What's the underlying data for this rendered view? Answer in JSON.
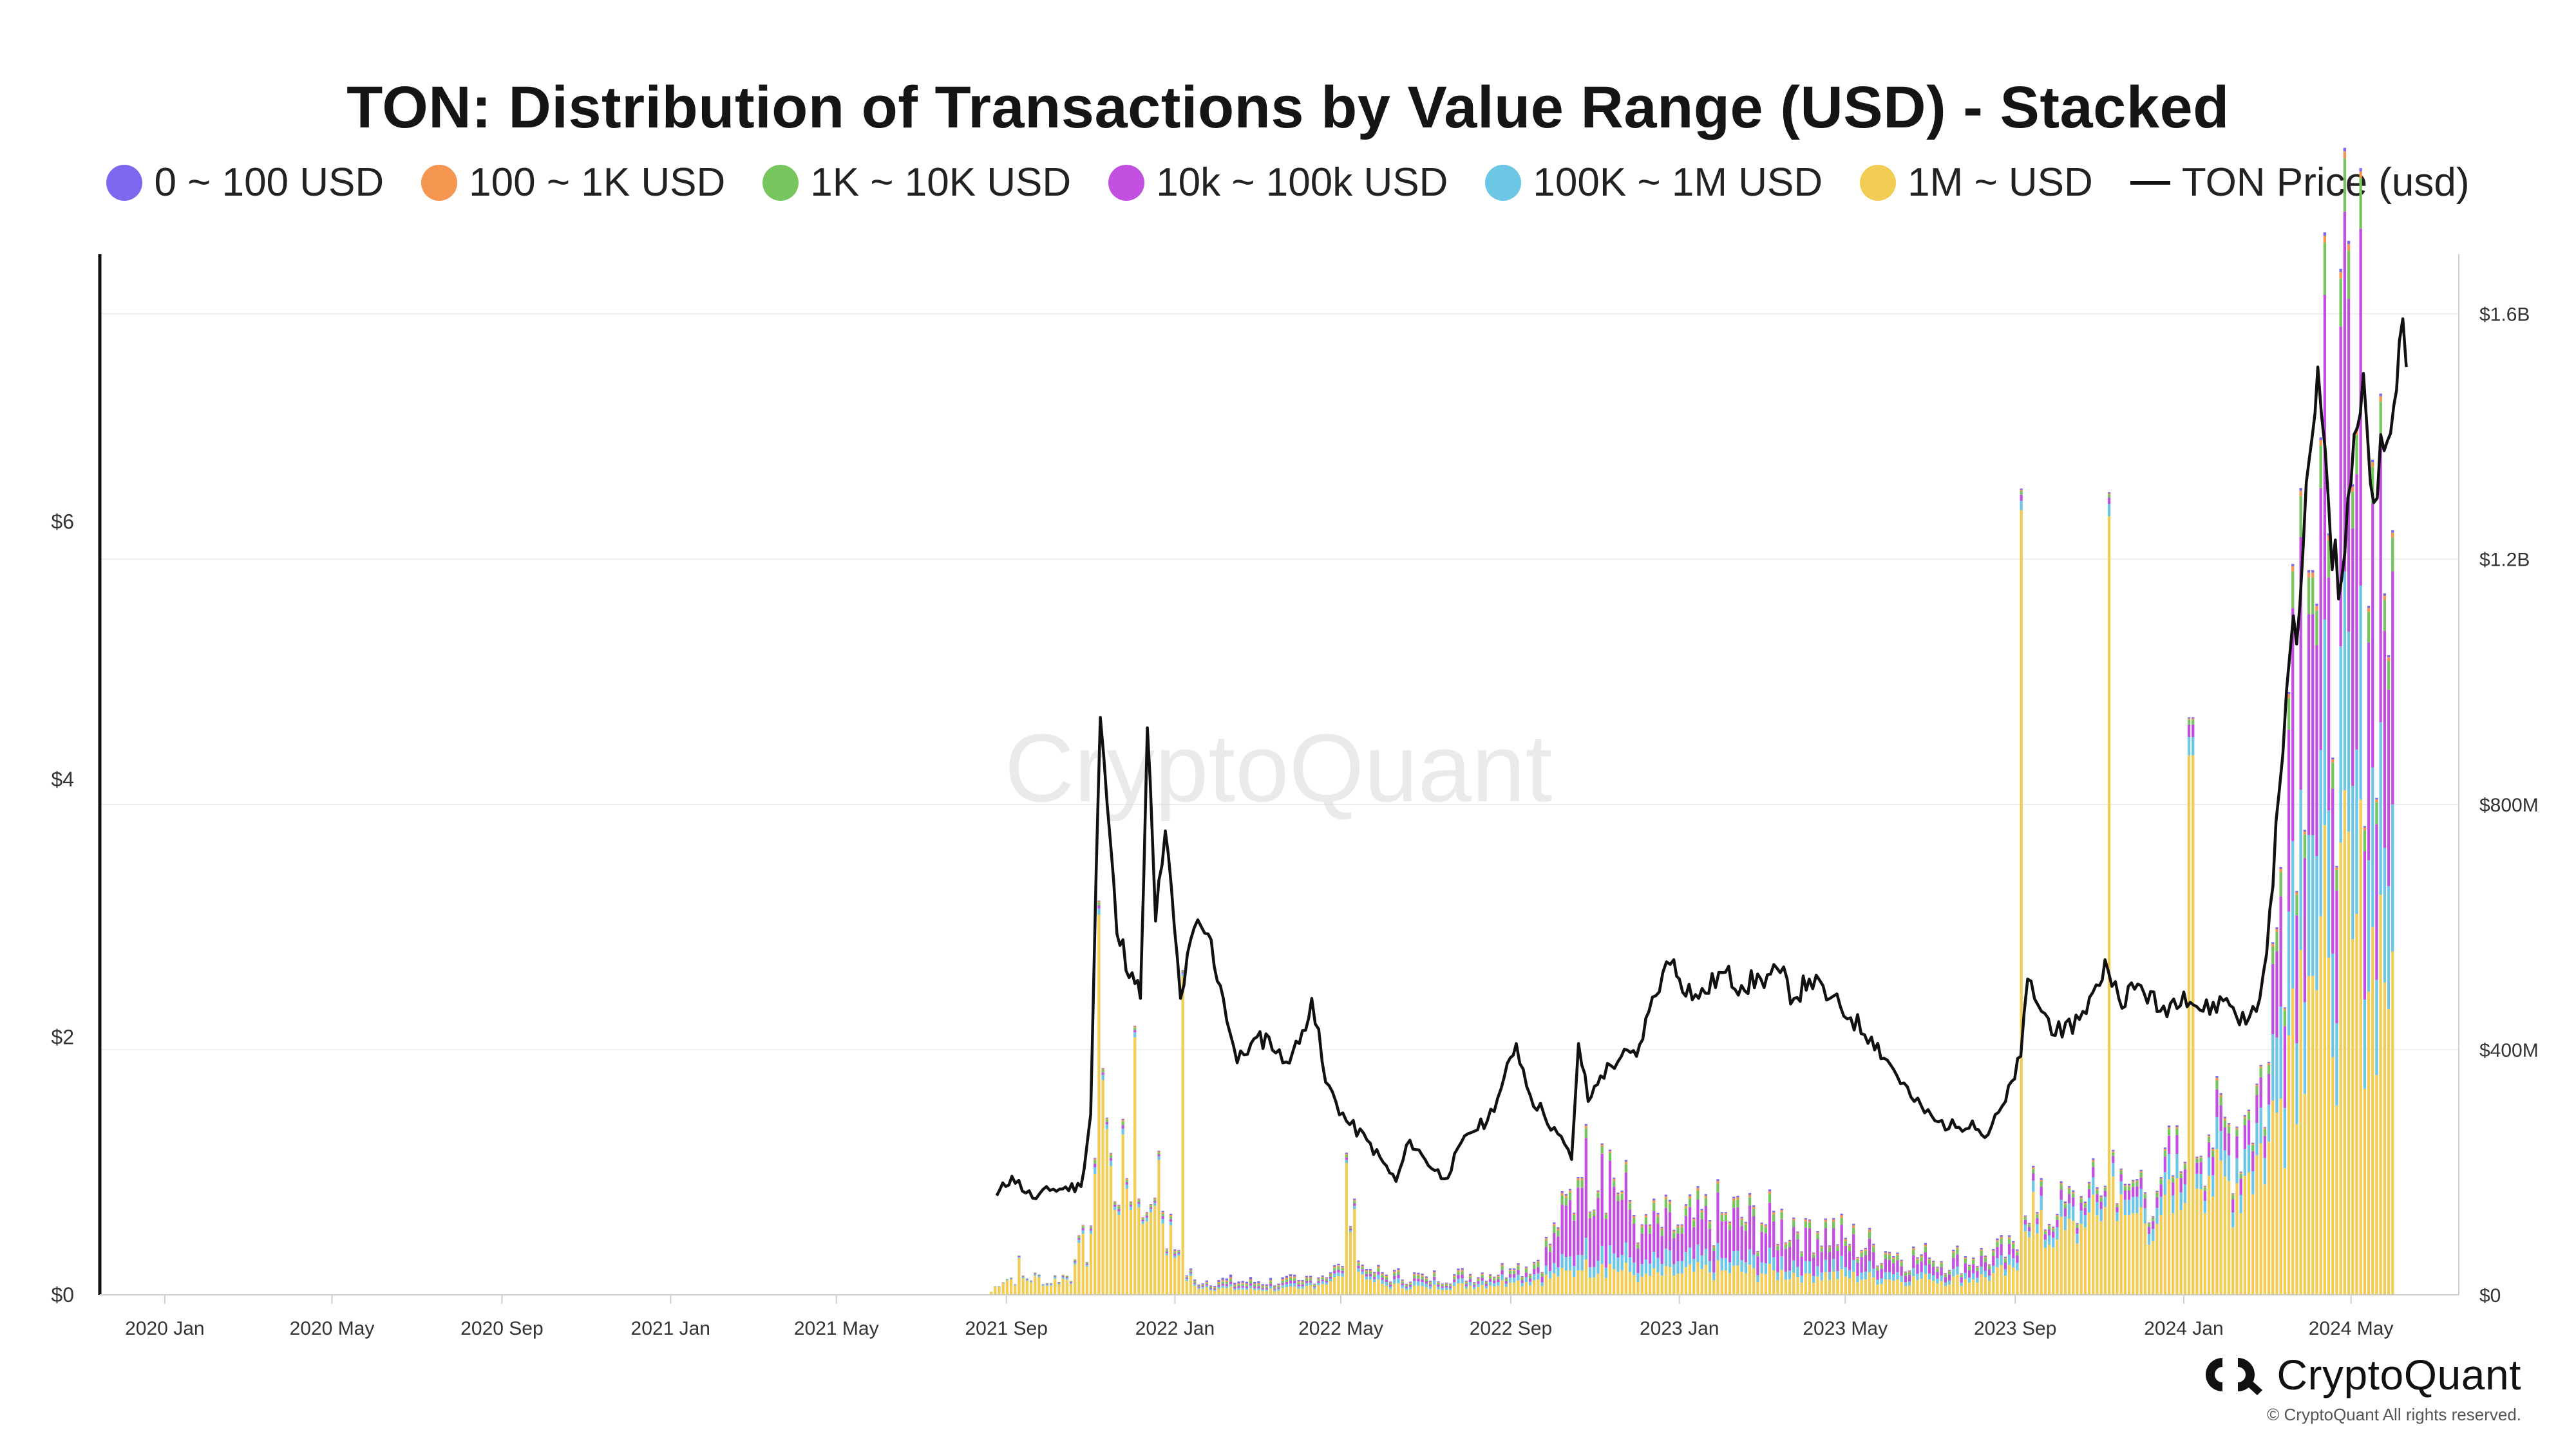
{
  "chart_data": {
    "type": "bar",
    "title": "TON: Distribution of Transactions by Value Range (USD) - Stacked",
    "stacked": true,
    "legend": {
      "placement": "top-center",
      "items": [
        {
          "label": "0 ~ 100 USD",
          "color": "#7b68ee",
          "kind": "dot"
        },
        {
          "label": "100 ~ 1K USD",
          "color": "#f4964f",
          "kind": "dot"
        },
        {
          "label": "1K ~ 10K USD",
          "color": "#76c55f",
          "kind": "dot"
        },
        {
          "label": "10k ~ 100k USD",
          "color": "#c24fe0",
          "kind": "dot"
        },
        {
          "label": "100K ~ 1M USD",
          "color": "#6cc6e6",
          "kind": "dot"
        },
        {
          "label": "1M ~ USD",
          "color": "#f2cc55",
          "kind": "dot"
        },
        {
          "label": "TON Price (usd)",
          "color": "#111111",
          "kind": "line"
        }
      ]
    },
    "x_ticks": [
      "2020 Jan",
      "2020 May",
      "2020 Sep",
      "2021 Jan",
      "2021 May",
      "2021 Sep",
      "2022 Jan",
      "2022 May",
      "2022 Sep",
      "2023 Jan",
      "2023 May",
      "2023 Sep",
      "2024 Jan",
      "2024 May"
    ],
    "y_left": {
      "ticks": [
        "$0",
        "$2",
        "$4",
        "$6"
      ],
      "values": [
        0,
        2,
        4,
        6
      ],
      "range": [
        0,
        7.85
      ]
    },
    "y_right": {
      "ticks": [
        "$0",
        "$400M",
        "$800M",
        "$1.2B",
        "$1.6B"
      ],
      "values": [
        0,
        400,
        800,
        1200,
        1600
      ],
      "range": [
        0,
        1650
      ],
      "unit": "million USD"
    },
    "grid": true,
    "watermark": "CryptoQuant",
    "series": [
      {
        "name": "1M ~ USD",
        "color": "#f2cc55"
      },
      {
        "name": "100K ~ 1M USD",
        "color": "#6cc6e6"
      },
      {
        "name": "10k ~ 100k USD",
        "color": "#c24fe0"
      },
      {
        "name": "1K ~ 10K USD",
        "color": "#76c55f"
      },
      {
        "name": "100 ~ 1K USD",
        "color": "#f4964f"
      },
      {
        "name": "0 ~ 100 USD",
        "color": "#7b68ee"
      }
    ],
    "volume_points_musd": [
      [
        "2021-08-20",
        5,
        0,
        0,
        0,
        0,
        0
      ],
      [
        "2021-09-10",
        60,
        2,
        1,
        1,
        0,
        0
      ],
      [
        "2021-10-01",
        15,
        2,
        1,
        1,
        0,
        0
      ],
      [
        "2021-10-20",
        50,
        3,
        2,
        2,
        1,
        0
      ],
      [
        "2021-11-01",
        100,
        5,
        3,
        3,
        1,
        1
      ],
      [
        "2021-11-05",
        620,
        10,
        5,
        5,
        2,
        1
      ],
      [
        "2021-11-12",
        270,
        8,
        4,
        4,
        2,
        1
      ],
      [
        "2021-11-20",
        130,
        6,
        4,
        4,
        2,
        1
      ],
      [
        "2021-12-01",
        420,
        8,
        4,
        4,
        2,
        1
      ],
      [
        "2021-12-10",
        120,
        6,
        3,
        3,
        2,
        1
      ],
      [
        "2021-12-20",
        220,
        6,
        3,
        3,
        2,
        1
      ],
      [
        "2022-01-01",
        60,
        4,
        3,
        3,
        2,
        2
      ],
      [
        "2022-01-05",
        520,
        4,
        2,
        2,
        1,
        1
      ],
      [
        "2022-01-15",
        15,
        3,
        2,
        2,
        1,
        2
      ],
      [
        "2022-02-01",
        10,
        3,
        3,
        3,
        2,
        3
      ],
      [
        "2022-03-01",
        8,
        3,
        3,
        3,
        2,
        3
      ],
      [
        "2022-04-01",
        10,
        4,
        3,
        3,
        2,
        2
      ],
      [
        "2022-05-01",
        30,
        5,
        4,
        4,
        2,
        2
      ],
      [
        "2022-05-05",
        215,
        5,
        4,
        4,
        2,
        2
      ],
      [
        "2022-05-10",
        140,
        5,
        4,
        4,
        2,
        2
      ],
      [
        "2022-05-20",
        25,
        5,
        4,
        4,
        2,
        2
      ],
      [
        "2022-06-01",
        15,
        6,
        4,
        4,
        2,
        2
      ],
      [
        "2022-07-01",
        12,
        6,
        4,
        4,
        2,
        2
      ],
      [
        "2022-08-01",
        15,
        6,
        5,
        4,
        2,
        2
      ],
      [
        "2022-09-01",
        20,
        8,
        6,
        5,
        2,
        2
      ],
      [
        "2022-09-20",
        25,
        10,
        10,
        8,
        2,
        2
      ],
      [
        "2022-10-05",
        30,
        15,
        50,
        10,
        3,
        2
      ],
      [
        "2022-10-20",
        40,
        25,
        110,
        12,
        3,
        2
      ],
      [
        "2022-11-05",
        50,
        30,
        150,
        12,
        3,
        2
      ],
      [
        "2022-11-20",
        40,
        25,
        90,
        10,
        3,
        2
      ],
      [
        "2022-12-05",
        30,
        20,
        50,
        10,
        3,
        2
      ],
      [
        "2023-01-01",
        35,
        20,
        45,
        10,
        3,
        2
      ],
      [
        "2023-02-01",
        40,
        20,
        60,
        10,
        3,
        2
      ],
      [
        "2023-03-01",
        35,
        18,
        50,
        10,
        3,
        2
      ],
      [
        "2023-04-01",
        35,
        20,
        55,
        10,
        3,
        2
      ],
      [
        "2023-05-01",
        30,
        15,
        35,
        8,
        3,
        2
      ],
      [
        "2023-06-01",
        25,
        12,
        20,
        8,
        3,
        2
      ],
      [
        "2023-07-01",
        25,
        10,
        15,
        7,
        2,
        2
      ],
      [
        "2023-08-01",
        25,
        10,
        15,
        7,
        2,
        2
      ],
      [
        "2023-09-01",
        40,
        12,
        12,
        6,
        2,
        2
      ],
      [
        "2023-09-05",
        1280,
        15,
        10,
        6,
        2,
        2
      ],
      [
        "2023-09-15",
        100,
        15,
        10,
        6,
        2,
        2
      ],
      [
        "2023-10-01",
        90,
        20,
        12,
        6,
        2,
        2
      ],
      [
        "2023-10-20",
        110,
        20,
        12,
        6,
        2,
        2
      ],
      [
        "2023-11-01",
        120,
        20,
        12,
        6,
        2,
        2
      ],
      [
        "2023-11-08",
        1270,
        20,
        10,
        5,
        2,
        2
      ],
      [
        "2023-11-20",
        130,
        25,
        15,
        7,
        2,
        2
      ],
      [
        "2023-12-15",
        130,
        30,
        20,
        8,
        2,
        2
      ],
      [
        "2024-01-01",
        150,
        30,
        25,
        8,
        2,
        2
      ],
      [
        "2024-01-05",
        880,
        30,
        20,
        8,
        2,
        2
      ],
      [
        "2024-01-20",
        160,
        35,
        30,
        10,
        3,
        2
      ],
      [
        "2024-02-15",
        200,
        45,
        40,
        12,
        3,
        2
      ],
      [
        "2024-03-01",
        250,
        60,
        50,
        15,
        3,
        2
      ],
      [
        "2024-03-10",
        320,
        150,
        180,
        40,
        5,
        3
      ],
      [
        "2024-03-20",
        500,
        240,
        380,
        60,
        8,
        4
      ],
      [
        "2024-04-01",
        520,
        230,
        360,
        60,
        8,
        4
      ],
      [
        "2024-04-15",
        550,
        240,
        380,
        60,
        8,
        4
      ],
      [
        "2024-05-01",
        580,
        250,
        420,
        60,
        8,
        4
      ],
      [
        "2024-05-15",
        600,
        260,
        430,
        60,
        8,
        4
      ],
      [
        "2024-05-31",
        560,
        240,
        380,
        55,
        8,
        4
      ]
    ],
    "price_points_usd": [
      [
        "2021-08-25",
        0.77
      ],
      [
        "2021-09-05",
        0.92
      ],
      [
        "2021-09-20",
        0.75
      ],
      [
        "2021-10-05",
        0.82
      ],
      [
        "2021-10-25",
        0.84
      ],
      [
        "2021-11-01",
        1.4
      ],
      [
        "2021-11-05",
        3.3
      ],
      [
        "2021-11-08",
        4.48
      ],
      [
        "2021-11-13",
        3.8
      ],
      [
        "2021-11-20",
        2.8
      ],
      [
        "2021-12-01",
        2.5
      ],
      [
        "2021-12-07",
        2.3
      ],
      [
        "2021-12-12",
        4.4
      ],
      [
        "2021-12-18",
        2.9
      ],
      [
        "2021-12-25",
        3.6
      ],
      [
        "2022-01-05",
        2.3
      ],
      [
        "2022-01-15",
        2.85
      ],
      [
        "2022-01-25",
        2.8
      ],
      [
        "2022-02-05",
        2.3
      ],
      [
        "2022-02-15",
        1.8
      ],
      [
        "2022-02-25",
        1.95
      ],
      [
        "2022-03-10",
        2.0
      ],
      [
        "2022-03-20",
        1.8
      ],
      [
        "2022-04-01",
        1.95
      ],
      [
        "2022-04-10",
        2.3
      ],
      [
        "2022-04-20",
        1.65
      ],
      [
        "2022-05-05",
        1.35
      ],
      [
        "2022-05-20",
        1.2
      ],
      [
        "2022-06-10",
        0.88
      ],
      [
        "2022-06-20",
        1.2
      ],
      [
        "2022-07-01",
        1.05
      ],
      [
        "2022-07-15",
        0.9
      ],
      [
        "2022-08-01",
        1.25
      ],
      [
        "2022-08-15",
        1.35
      ],
      [
        "2022-08-25",
        1.6
      ],
      [
        "2022-09-05",
        1.95
      ],
      [
        "2022-09-15",
        1.55
      ],
      [
        "2022-09-25",
        1.4
      ],
      [
        "2022-10-05",
        1.25
      ],
      [
        "2022-10-15",
        1.05
      ],
      [
        "2022-10-20",
        1.95
      ],
      [
        "2022-10-27",
        1.5
      ],
      [
        "2022-11-05",
        1.7
      ],
      [
        "2022-11-20",
        1.85
      ],
      [
        "2022-12-01",
        1.85
      ],
      [
        "2022-12-10",
        2.2
      ],
      [
        "2022-12-20",
        2.5
      ],
      [
        "2022-12-28",
        2.6
      ],
      [
        "2023-01-01",
        2.45
      ],
      [
        "2023-01-15",
        2.3
      ],
      [
        "2023-02-01",
        2.5
      ],
      [
        "2023-02-15",
        2.4
      ],
      [
        "2023-03-01",
        2.45
      ],
      [
        "2023-03-15",
        2.5
      ],
      [
        "2023-03-25",
        2.3
      ],
      [
        "2023-04-05",
        2.45
      ],
      [
        "2023-04-20",
        2.3
      ],
      [
        "2023-05-05",
        2.15
      ],
      [
        "2023-05-20",
        2.0
      ],
      [
        "2023-06-05",
        1.75
      ],
      [
        "2023-06-20",
        1.5
      ],
      [
        "2023-07-05",
        1.35
      ],
      [
        "2023-07-20",
        1.3
      ],
      [
        "2023-08-01",
        1.35
      ],
      [
        "2023-08-10",
        1.22
      ],
      [
        "2023-08-25",
        1.5
      ],
      [
        "2023-09-05",
        1.85
      ],
      [
        "2023-09-10",
        2.45
      ],
      [
        "2023-09-20",
        2.2
      ],
      [
        "2023-10-05",
        2.0
      ],
      [
        "2023-10-20",
        2.2
      ],
      [
        "2023-11-01",
        2.4
      ],
      [
        "2023-11-05",
        2.6
      ],
      [
        "2023-11-15",
        2.3
      ],
      [
        "2023-12-01",
        2.4
      ],
      [
        "2023-12-15",
        2.2
      ],
      [
        "2024-01-01",
        2.35
      ],
      [
        "2024-01-15",
        2.2
      ],
      [
        "2024-02-01",
        2.3
      ],
      [
        "2024-02-15",
        2.1
      ],
      [
        "2024-02-25",
        2.3
      ],
      [
        "2024-03-01",
        2.65
      ],
      [
        "2024-03-10",
        3.9
      ],
      [
        "2024-03-18",
        5.0
      ],
      [
        "2024-03-25",
        5.35
      ],
      [
        "2024-04-01",
        6.5
      ],
      [
        "2024-04-07",
        7.2
      ],
      [
        "2024-04-15",
        6.1
      ],
      [
        "2024-04-22",
        5.4
      ],
      [
        "2024-05-01",
        6.3
      ],
      [
        "2024-05-10",
        7.15
      ],
      [
        "2024-05-15",
        6.3
      ],
      [
        "2024-05-25",
        6.55
      ],
      [
        "2024-06-01",
        6.9
      ],
      [
        "2024-06-05",
        7.4
      ],
      [
        "2024-06-10",
        7.2
      ]
    ]
  },
  "brand": {
    "name": "CryptoQuant",
    "copyright": "© CryptoQuant All rights reserved."
  }
}
